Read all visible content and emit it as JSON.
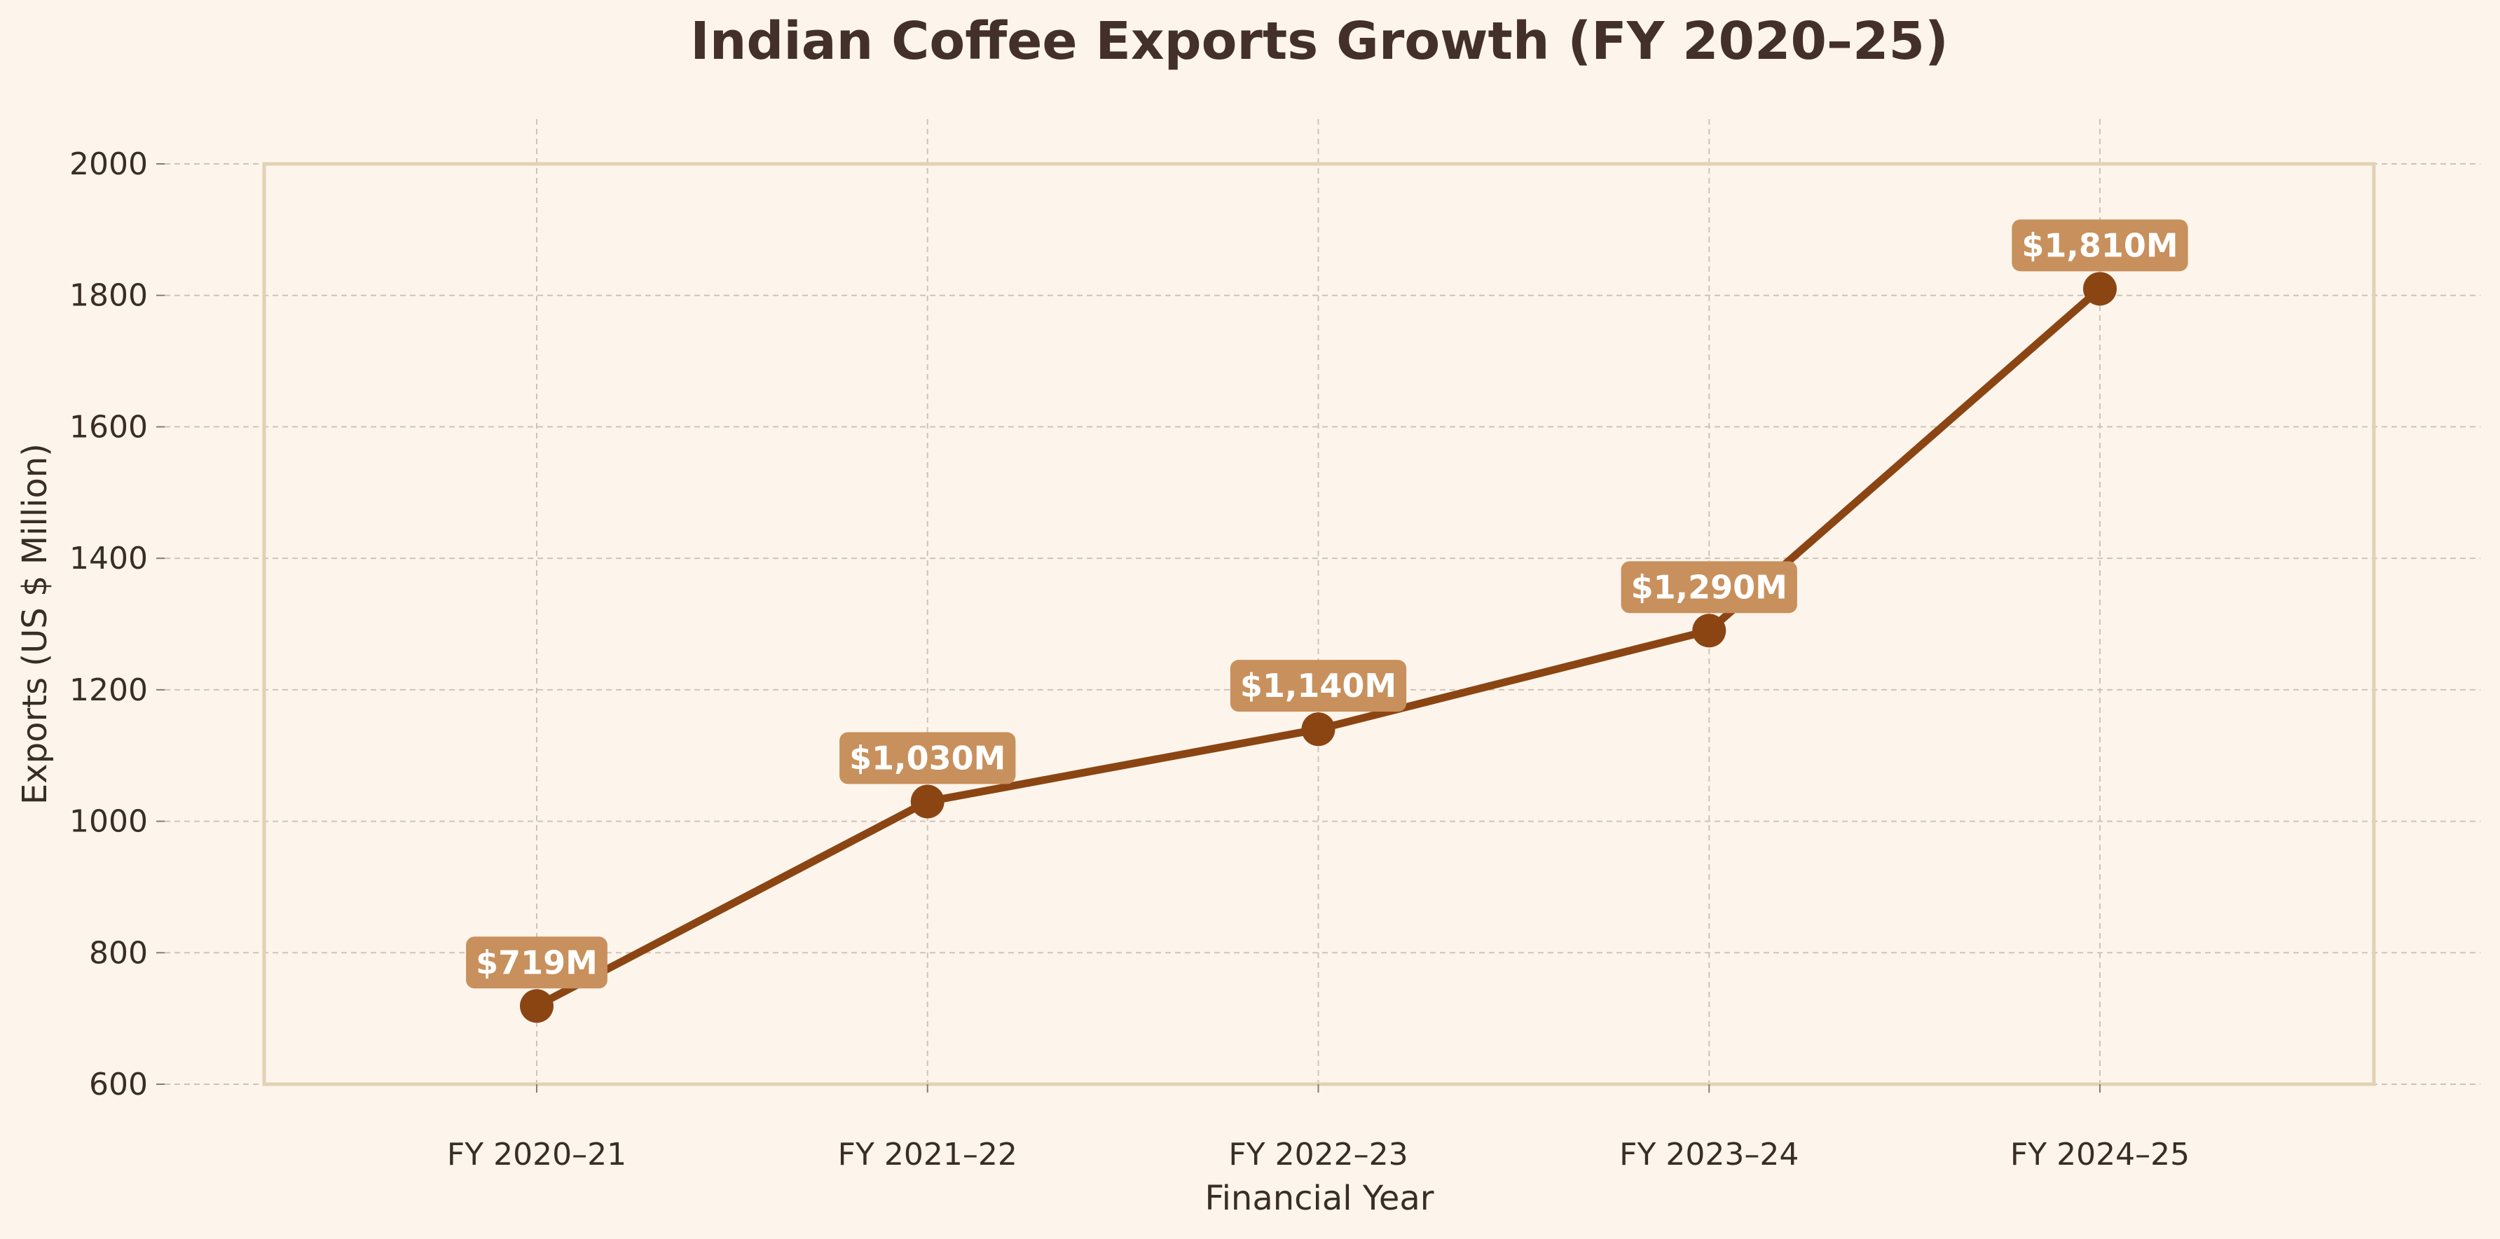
{
  "colors": {
    "background": "#fdf5ec",
    "line": "#8b4513",
    "marker": "#8b4513",
    "label_box": "#c8905c",
    "label_text": "#ffffff",
    "title": "#43302b",
    "frame": "#e3d1b4",
    "grid": "#cfc3b5"
  },
  "chart_data": {
    "type": "line",
    "title": "Indian Coffee Exports Growth (FY 2020–25)",
    "xlabel": "Financial Year",
    "ylabel": "Exports (US $ Million)",
    "categories": [
      "FY 2020–21",
      "FY 2021–22",
      "FY 2022–23",
      "FY 2023–24",
      "FY 2024–25"
    ],
    "series": [
      {
        "name": "Exports",
        "values": [
          719,
          1030,
          1140,
          1290,
          1810
        ],
        "labels": [
          "$719M",
          "$1,030M",
          "$1,140M",
          "$1,290M",
          "$1,810M"
        ]
      }
    ],
    "ylim": [
      600,
      2000
    ],
    "yticks": [
      600,
      800,
      1000,
      1200,
      1400,
      1600,
      1800,
      2000
    ],
    "grid": true
  }
}
